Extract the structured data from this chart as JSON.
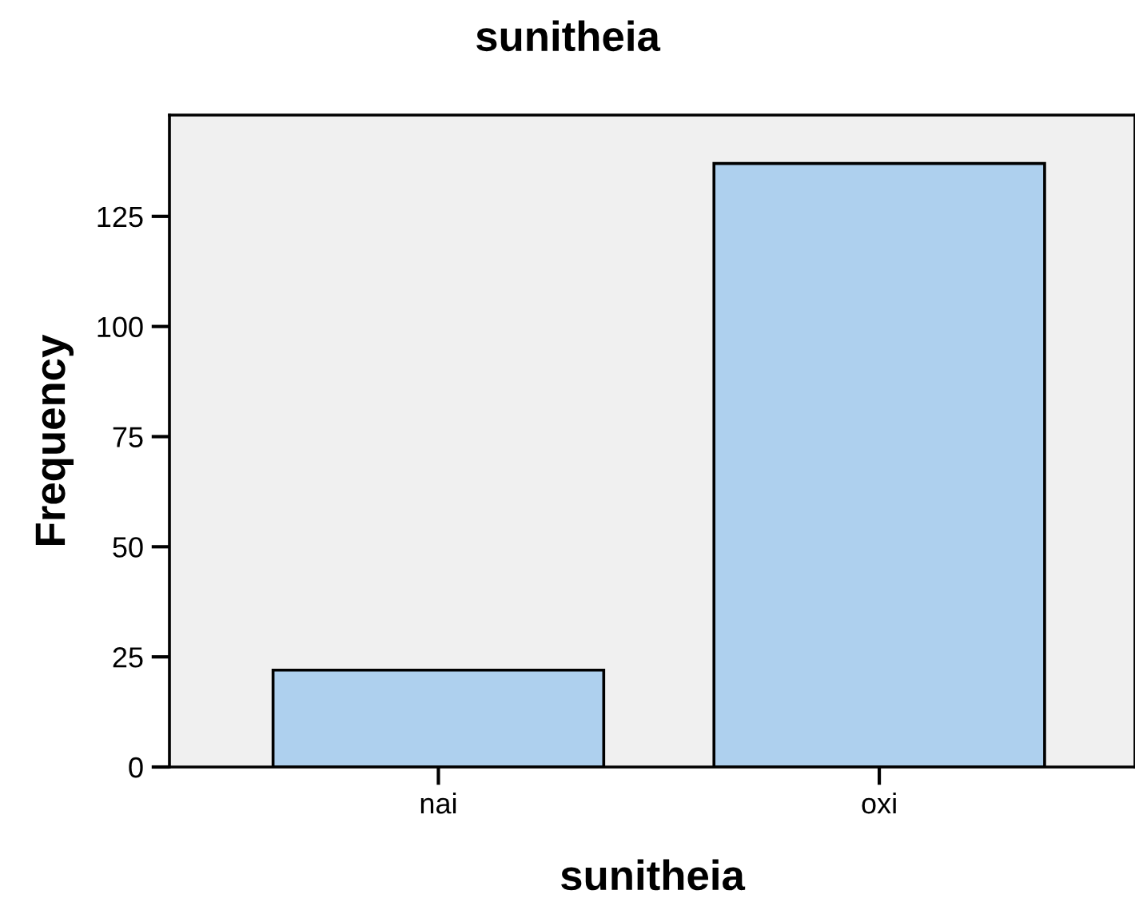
{
  "chart_data": {
    "type": "bar",
    "title": "sunitheia",
    "xlabel": "sunitheia",
    "ylabel": "Frequency",
    "categories": [
      "nai",
      "oxi"
    ],
    "values": [
      22,
      137
    ],
    "color": "#aed0ee",
    "ylim": [
      0,
      148
    ],
    "yticks": [
      0,
      25,
      50,
      75,
      100,
      125
    ],
    "grid": false,
    "legend": false
  }
}
